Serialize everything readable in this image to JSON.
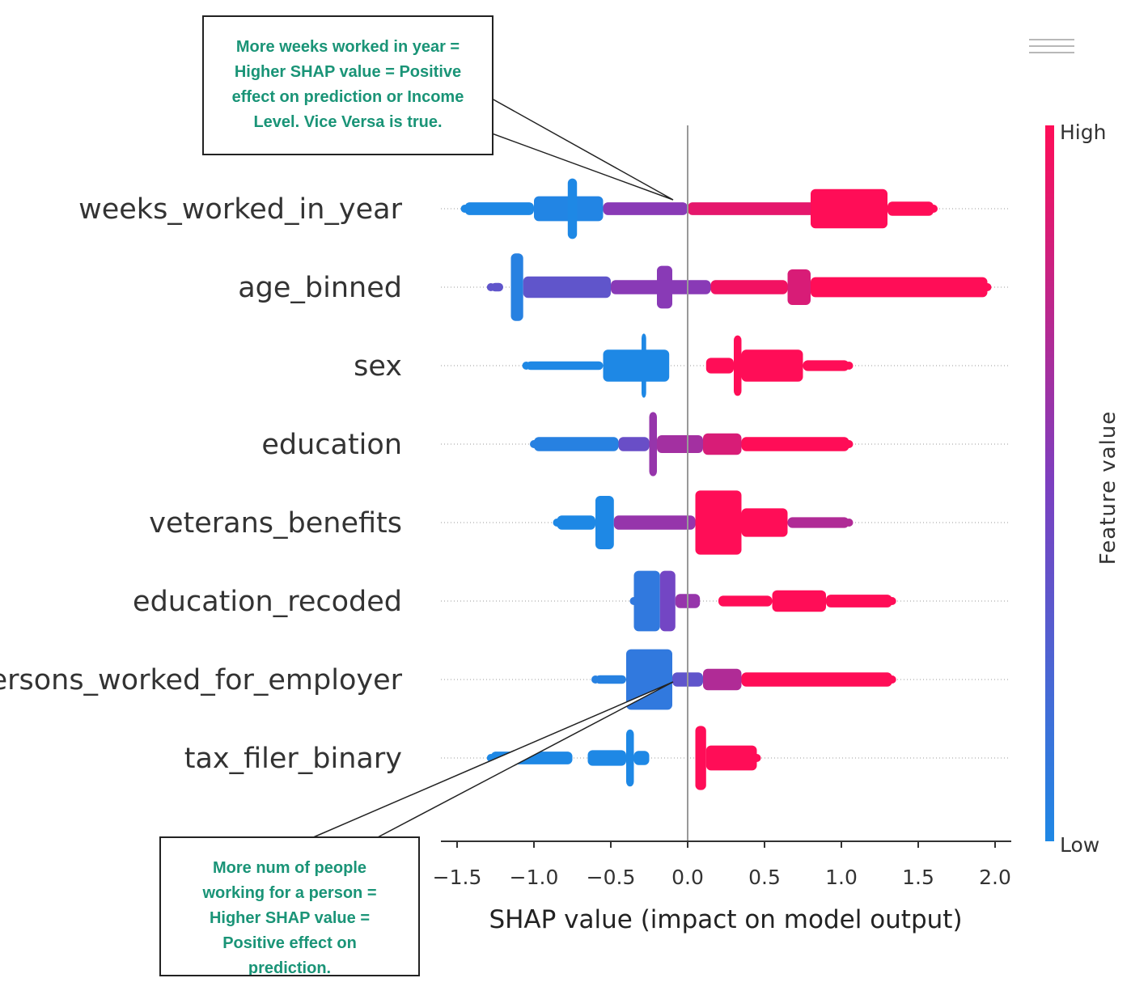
{
  "chart_data": {
    "type": "scatter",
    "subtype": "shap_beeswarm_summary",
    "features": [
      "weeks_worked_in_year",
      "age_binned",
      "sex",
      "education",
      "veterans_benefits",
      "education_recoded",
      "num_persons_worked_for_employer",
      "tax_filer_binary"
    ],
    "xlabel": "SHAP value (impact on model output)",
    "xlim": [
      -1.5,
      2.0
    ],
    "xticks": [
      "−1.5",
      "−1.0",
      "−0.5",
      "0.0",
      "0.5",
      "1.0",
      "1.5",
      "2.0"
    ],
    "xtick_values": [
      -1.5,
      -1.0,
      -0.5,
      0.0,
      0.5,
      1.0,
      1.5,
      2.0
    ],
    "colorbar": {
      "title": "Feature value",
      "high_label": "High",
      "low_label": "Low",
      "low_color": "#1e88e5",
      "high_color": "#ff0d57"
    },
    "rows": [
      {
        "feature": "weeks_worked_in_year",
        "segments": [
          {
            "from": -1.45,
            "to": -1.0,
            "w": 0.18,
            "v": 0.0
          },
          {
            "from": -1.0,
            "to": -0.55,
            "w": 0.35,
            "v": 0.02
          },
          {
            "from": -0.78,
            "to": -0.72,
            "w": 0.85,
            "v": 0.0
          },
          {
            "from": -0.55,
            "to": 0.0,
            "w": 0.18,
            "v": 0.55
          },
          {
            "from": 0.0,
            "to": 0.9,
            "w": 0.18,
            "v": 0.9
          },
          {
            "from": 0.8,
            "to": 1.3,
            "w": 0.55,
            "v": 1.0
          },
          {
            "from": 1.3,
            "to": 1.6,
            "w": 0.2,
            "v": 1.0
          }
        ]
      },
      {
        "feature": "age_binned",
        "segments": [
          {
            "from": -1.28,
            "to": -1.2,
            "w": 0.12,
            "v": 0.35
          },
          {
            "from": -1.15,
            "to": -1.07,
            "w": 0.95,
            "v": 0.05
          },
          {
            "from": -1.07,
            "to": -0.5,
            "w": 0.3,
            "v": 0.35
          },
          {
            "from": -0.5,
            "to": 0.15,
            "w": 0.2,
            "v": 0.55
          },
          {
            "from": -0.2,
            "to": -0.1,
            "w": 0.6,
            "v": 0.55
          },
          {
            "from": 0.15,
            "to": 0.65,
            "w": 0.2,
            "v": 0.95
          },
          {
            "from": 0.65,
            "to": 0.8,
            "w": 0.5,
            "v": 0.85
          },
          {
            "from": 0.8,
            "to": 1.95,
            "w": 0.28,
            "v": 1.0
          }
        ]
      },
      {
        "feature": "sex",
        "segments": [
          {
            "from": -1.05,
            "to": -0.55,
            "w": 0.12,
            "v": 0.0
          },
          {
            "from": -0.55,
            "to": -0.12,
            "w": 0.45,
            "v": 0.0
          },
          {
            "from": -0.3,
            "to": -0.27,
            "w": 0.9,
            "v": 0.0
          },
          {
            "from": 0.12,
            "to": 0.3,
            "w": 0.22,
            "v": 1.0
          },
          {
            "from": 0.3,
            "to": 0.35,
            "w": 0.85,
            "v": 1.0
          },
          {
            "from": 0.35,
            "to": 0.75,
            "w": 0.45,
            "v": 1.0
          },
          {
            "from": 0.75,
            "to": 1.05,
            "w": 0.15,
            "v": 1.0
          }
        ]
      },
      {
        "feature": "education",
        "segments": [
          {
            "from": -1.0,
            "to": -0.45,
            "w": 0.2,
            "v": 0.05
          },
          {
            "from": -0.45,
            "to": -0.25,
            "w": 0.2,
            "v": 0.4
          },
          {
            "from": -0.25,
            "to": -0.2,
            "w": 0.9,
            "v": 0.6
          },
          {
            "from": -0.2,
            "to": 0.1,
            "w": 0.25,
            "v": 0.65
          },
          {
            "from": 0.1,
            "to": 0.35,
            "w": 0.3,
            "v": 0.85
          },
          {
            "from": 0.35,
            "to": 1.05,
            "w": 0.2,
            "v": 1.0
          }
        ]
      },
      {
        "feature": "veterans_benefits",
        "segments": [
          {
            "from": -0.85,
            "to": -0.6,
            "w": 0.2,
            "v": 0.0
          },
          {
            "from": -0.6,
            "to": -0.48,
            "w": 0.75,
            "v": 0.0
          },
          {
            "from": -0.48,
            "to": 0.05,
            "w": 0.2,
            "v": 0.6
          },
          {
            "from": 0.05,
            "to": 0.35,
            "w": 0.9,
            "v": 1.0
          },
          {
            "from": 0.35,
            "to": 0.65,
            "w": 0.4,
            "v": 1.0
          },
          {
            "from": 0.65,
            "to": 1.05,
            "w": 0.15,
            "v": 0.7
          }
        ]
      },
      {
        "feature": "education_recoded",
        "segments": [
          {
            "from": -0.35,
            "to": -0.18,
            "w": 0.85,
            "v": 0.1
          },
          {
            "from": -0.18,
            "to": -0.08,
            "w": 0.85,
            "v": 0.45
          },
          {
            "from": -0.08,
            "to": 0.08,
            "w": 0.2,
            "v": 0.6
          },
          {
            "from": 0.2,
            "to": 0.55,
            "w": 0.15,
            "v": 1.0
          },
          {
            "from": 0.55,
            "to": 0.9,
            "w": 0.3,
            "v": 1.0
          },
          {
            "from": 0.9,
            "to": 1.33,
            "w": 0.18,
            "v": 1.0
          }
        ]
      },
      {
        "feature": "num_persons_worked_for_employer",
        "segments": [
          {
            "from": -0.6,
            "to": -0.4,
            "w": 0.12,
            "v": 0.05
          },
          {
            "from": -0.4,
            "to": -0.1,
            "w": 0.85,
            "v": 0.1
          },
          {
            "from": -0.1,
            "to": 0.1,
            "w": 0.2,
            "v": 0.35
          },
          {
            "from": 0.1,
            "to": 0.35,
            "w": 0.3,
            "v": 0.7
          },
          {
            "from": 0.35,
            "to": 1.33,
            "w": 0.2,
            "v": 1.0
          }
        ]
      },
      {
        "feature": "tax_filer_binary",
        "segments": [
          {
            "from": -1.28,
            "to": -0.75,
            "w": 0.18,
            "v": 0.0
          },
          {
            "from": -0.65,
            "to": -0.4,
            "w": 0.22,
            "v": 0.0
          },
          {
            "from": -0.4,
            "to": -0.35,
            "w": 0.8,
            "v": 0.0
          },
          {
            "from": -0.35,
            "to": -0.25,
            "w": 0.2,
            "v": 0.0
          },
          {
            "from": 0.05,
            "to": 0.12,
            "w": 0.9,
            "v": 1.0
          },
          {
            "from": 0.12,
            "to": 0.45,
            "w": 0.35,
            "v": 1.0
          }
        ]
      }
    ]
  },
  "annotations": {
    "top": "More weeks worked in year = Higher SHAP value = Positive effect on prediction or Income Level. Vice Versa is true.",
    "bottom": "More num of people working for a person = Higher SHAP value = Positive effect on prediction."
  }
}
